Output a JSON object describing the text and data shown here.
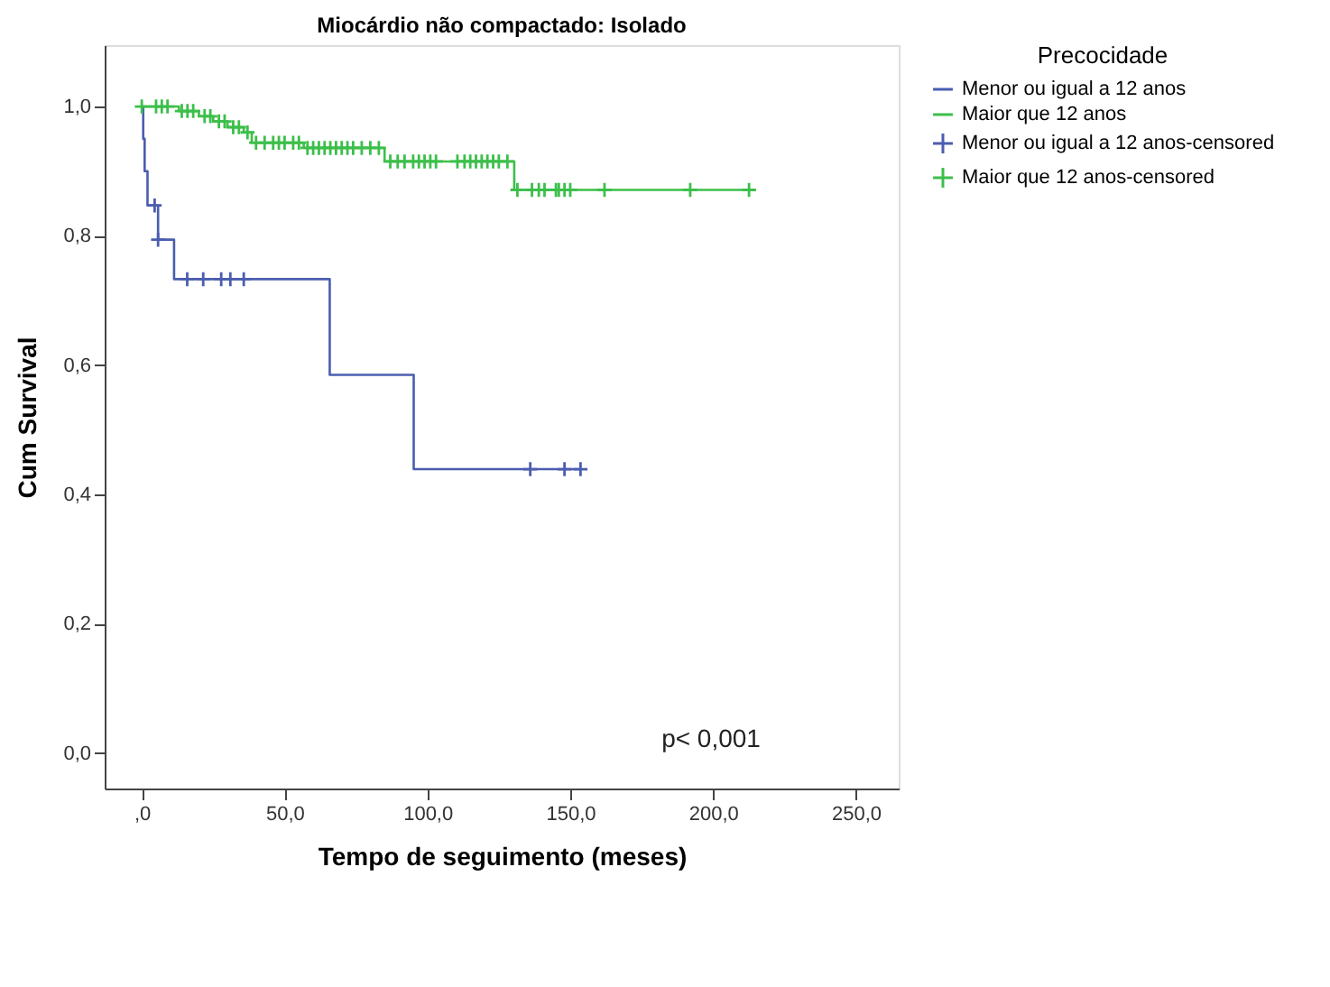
{
  "chart_data": {
    "type": "step",
    "title": "Miocárdio não compactado: Isolado",
    "xlabel": "Tempo de seguimento (meses)",
    "ylabel": "Cum Survival",
    "legend_title": "Precocidade",
    "legend": "right",
    "grid": false,
    "xlim": [
      -13,
      265
    ],
    "ylim": [
      -0.055,
      1.095
    ],
    "xticks": [
      {
        "value": 0,
        "label": ",0"
      },
      {
        "value": 50,
        "label": "50,0"
      },
      {
        "value": 100,
        "label": "100,0"
      },
      {
        "value": 150,
        "label": "150,0"
      },
      {
        "value": 200,
        "label": "200,0"
      },
      {
        "value": 250,
        "label": "250,0"
      }
    ],
    "yticks": [
      {
        "value": 0,
        "label": "0,0"
      },
      {
        "value": 0.2,
        "label": "0,2"
      },
      {
        "value": 0.4,
        "label": "0,4"
      },
      {
        "value": 0.6,
        "label": "0,6"
      },
      {
        "value": 0.8,
        "label": "0,8"
      },
      {
        "value": 1.0,
        "label": "1,0"
      }
    ],
    "annotations": [
      "p< 0,001"
    ],
    "series": [
      {
        "name": "Menor ou igual a 12 anos",
        "color": "#4a5db0",
        "x": [
          0,
          0.5,
          1,
          2,
          5.7,
          11.3,
          65.8,
          95.2,
          153.6
        ],
        "values": [
          1.0,
          0.95,
          0.9,
          0.847,
          0.794,
          0.733,
          0.585,
          0.439,
          0.439
        ]
      },
      {
        "name": "Maior que 12 anos",
        "color": "#3cbf4a",
        "x": [
          0,
          13,
          20,
          25,
          30,
          35.7,
          38.5,
          56.7,
          85,
          130.4,
          212.6
        ],
        "values": [
          1.0,
          0.993,
          0.985,
          0.977,
          0.968,
          0.96,
          0.944,
          0.936,
          0.915,
          0.871,
          0.871
        ]
      },
      {
        "name": "Menor ou igual a 12 anos-censored",
        "type": "scatter",
        "marker": "cross",
        "color": "#4a5db0",
        "x": [
          4.5,
          5.7,
          15.9,
          21.5,
          27.8,
          31,
          35.7,
          136,
          148,
          153.6
        ],
        "values": [
          0.847,
          0.794,
          0.733,
          0.733,
          0.733,
          0.733,
          0.733,
          0.439,
          0.439,
          0.439
        ]
      },
      {
        "name": "Maior que 12 anos-censored",
        "type": "scatter",
        "marker": "cross",
        "color": "#3cbf4a",
        "x": [
          0,
          5,
          7,
          9,
          14,
          16,
          18,
          22,
          24,
          27,
          29,
          32,
          34,
          37,
          40,
          43,
          46,
          48,
          50,
          53,
          55,
          58,
          60,
          62,
          64,
          66,
          68,
          70,
          72,
          74,
          77,
          80,
          83,
          87,
          89.6,
          92,
          95,
          97,
          99,
          101,
          103,
          110.5,
          113,
          115,
          117,
          119,
          121,
          123,
          125,
          128,
          131.5,
          136.6,
          139,
          141,
          145,
          146,
          148,
          150,
          162,
          192,
          212.6
        ],
        "values": [
          1.0,
          1.0,
          1.0,
          1.0,
          0.993,
          0.993,
          0.993,
          0.985,
          0.985,
          0.977,
          0.977,
          0.968,
          0.968,
          0.96,
          0.944,
          0.944,
          0.944,
          0.944,
          0.944,
          0.944,
          0.944,
          0.936,
          0.936,
          0.936,
          0.936,
          0.936,
          0.936,
          0.936,
          0.936,
          0.936,
          0.936,
          0.936,
          0.936,
          0.915,
          0.915,
          0.915,
          0.915,
          0.915,
          0.915,
          0.915,
          0.915,
          0.915,
          0.915,
          0.915,
          0.915,
          0.915,
          0.915,
          0.915,
          0.915,
          0.915,
          0.871,
          0.871,
          0.871,
          0.871,
          0.871,
          0.871,
          0.871,
          0.871,
          0.871,
          0.871,
          0.871
        ]
      }
    ]
  }
}
